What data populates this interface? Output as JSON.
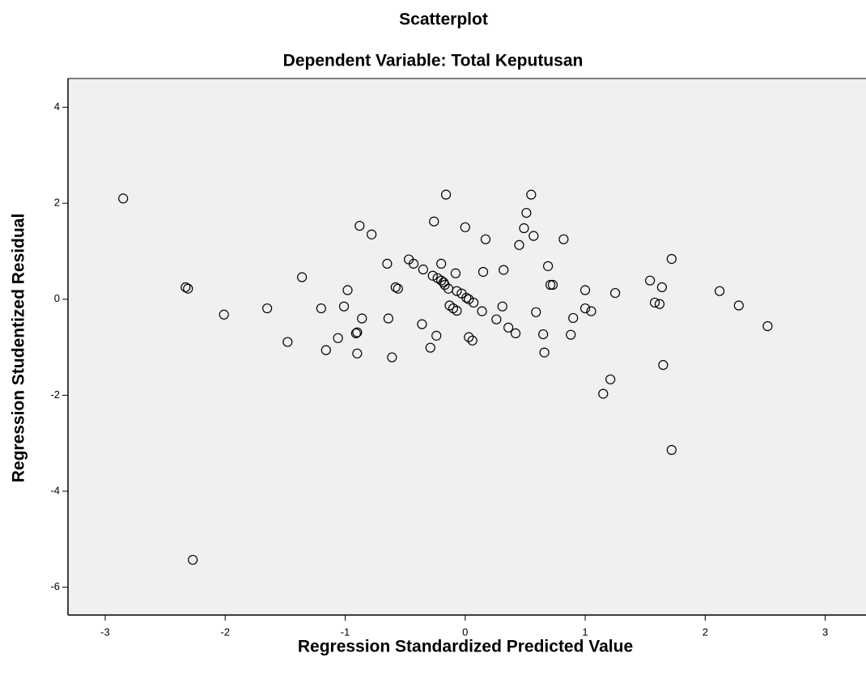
{
  "chart_data": {
    "type": "scatter",
    "title": "Scatterplot",
    "subtitle": "Dependent Variable: Total Keputusan",
    "x_label": "Regression Standardized Predicted Value",
    "y_label": "Regression Studentized Residual",
    "color": "#000000",
    "background": "#f0f0f0",
    "xlim": [
      -3.31,
      3.34
    ],
    "ylim": [
      -6.58,
      4.6
    ],
    "xticks": [
      -3,
      -2,
      -1,
      0,
      1,
      2,
      3
    ],
    "yticks": [
      -6,
      -4,
      -2,
      0,
      2,
      4
    ],
    "x": [
      -2.85,
      -2.33,
      -2.31,
      -2.27,
      -2.01,
      -1.65,
      -1.48,
      -1.36,
      -1.2,
      -1.16,
      -1.06,
      -1.01,
      -0.98,
      -0.91,
      -0.9,
      -0.9,
      -0.88,
      -0.86,
      -0.78,
      -0.65,
      -0.64,
      -0.61,
      -0.58,
      -0.56,
      -0.47,
      -0.43,
      -0.36,
      -0.35,
      -0.29,
      -0.27,
      -0.26,
      -0.24,
      -0.23,
      -0.2,
      -0.2,
      -0.18,
      -0.17,
      -0.16,
      -0.14,
      -0.13,
      -0.1,
      -0.08,
      -0.07,
      -0.07,
      -0.03,
      0.0,
      0.01,
      0.03,
      0.03,
      0.06,
      0.07,
      0.14,
      0.15,
      0.17,
      0.26,
      0.31,
      0.32,
      0.36,
      0.42,
      0.45,
      0.49,
      0.51,
      0.55,
      0.57,
      0.59,
      0.65,
      0.66,
      0.69,
      0.71,
      0.73,
      0.82,
      0.88,
      0.9,
      1.0,
      1.0,
      1.05,
      1.15,
      1.21,
      1.25,
      1.54,
      1.58,
      1.62,
      1.64,
      1.65,
      1.72,
      1.72,
      2.12,
      2.28,
      2.52
    ],
    "values": [
      2.1,
      0.25,
      0.22,
      -5.43,
      -0.32,
      -0.19,
      -0.89,
      0.46,
      -0.19,
      -1.06,
      -0.81,
      -0.15,
      0.19,
      -0.71,
      -0.69,
      -1.13,
      1.53,
      -0.4,
      1.35,
      0.74,
      -0.4,
      -1.21,
      0.25,
      0.22,
      0.83,
      0.74,
      -0.52,
      0.62,
      -1.01,
      0.49,
      1.62,
      -0.76,
      0.44,
      0.74,
      0.39,
      0.35,
      0.3,
      2.18,
      0.22,
      -0.13,
      -0.19,
      0.54,
      0.17,
      -0.24,
      0.12,
      1.5,
      0.03,
      0.0,
      -0.79,
      -0.86,
      -0.07,
      -0.25,
      0.57,
      1.25,
      -0.42,
      -0.15,
      0.61,
      -0.59,
      -0.71,
      1.13,
      1.48,
      1.8,
      2.18,
      1.32,
      -0.27,
      -0.73,
      -1.11,
      0.69,
      0.3,
      0.3,
      1.25,
      -0.74,
      -0.39,
      0.19,
      -0.19,
      -0.25,
      -1.97,
      -1.67,
      0.13,
      0.39,
      -0.07,
      -0.1,
      0.25,
      -1.37,
      -3.14,
      0.84,
      0.17,
      -0.13,
      -0.56
    ]
  }
}
